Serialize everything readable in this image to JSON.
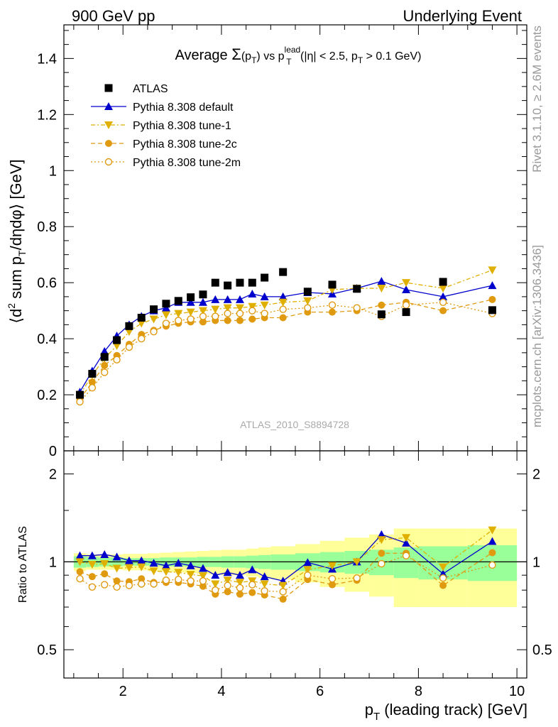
{
  "header": {
    "left": "900 GeV pp",
    "right": "Underlying Event"
  },
  "side_labels": {
    "rivet": "Rivet 3.1.10, ≥ 2.6M events",
    "mcplots": "mcplots.cern.ch [arXiv:1306.3436]"
  },
  "chart_data": [
    {
      "type": "scatter",
      "panel": "main",
      "title": {
        "prefix": "Average ",
        "sigma": "Σ",
        "paren_open": "(p",
        "paren_sub": "T",
        "paren_close": ")",
        "vs": " vs p",
        "lead_sup": "lead",
        "lead_sub": "T",
        "cuts_a": " (|η| < 2.5, p",
        "cuts_sub": "T",
        "cuts_b": " > 0.1 GeV)"
      },
      "ylabel": {
        "a": "⟨d",
        "sup": "2",
        "b": " sum p",
        "sub": "T",
        "c": "/dηdφ⟩ [GeV]"
      },
      "watermark": "ATLAS_2010_S8894728",
      "xlim": [
        0.8,
        10.2
      ],
      "ylim": [
        0,
        1.52
      ],
      "ytick_labels": [
        "0",
        "0.2",
        "0.4",
        "0.6",
        "0.8",
        "1",
        "1.2",
        "1.4"
      ],
      "legend_position": "top-left",
      "x": [
        1.125,
        1.375,
        1.625,
        1.875,
        2.125,
        2.375,
        2.625,
        2.875,
        3.125,
        3.375,
        3.625,
        3.875,
        4.125,
        4.375,
        4.625,
        4.875,
        5.25,
        5.75,
        6.25,
        6.75,
        7.25,
        7.75,
        8.5,
        9.5
      ],
      "series": [
        {
          "name": "ATLAS",
          "color": "#000000",
          "marker": "square",
          "values": [
            0.2,
            0.275,
            0.335,
            0.395,
            0.445,
            0.475,
            0.505,
            0.525,
            0.535,
            0.548,
            0.558,
            0.6,
            0.59,
            0.6,
            0.6,
            0.618,
            0.638,
            0.568,
            0.593,
            0.578,
            0.487,
            0.495,
            0.603,
            0.502
          ]
        },
        {
          "name": "Pythia 8.308 default",
          "color": "#0000cc",
          "marker": "triangle-up",
          "line": "solid",
          "values": [
            0.21,
            0.285,
            0.355,
            0.41,
            0.45,
            0.48,
            0.5,
            0.51,
            0.53,
            0.53,
            0.53,
            0.54,
            0.54,
            0.54,
            0.56,
            0.55,
            0.55,
            0.565,
            0.56,
            0.58,
            0.605,
            0.575,
            0.55,
            0.59
          ]
        },
        {
          "name": "Pythia 8.308 tune-1",
          "color": "#e0b000",
          "marker": "triangle-down",
          "line": "dashdot",
          "values": [
            0.2,
            0.27,
            0.33,
            0.375,
            0.425,
            0.455,
            0.47,
            0.485,
            0.49,
            0.495,
            0.5,
            0.505,
            0.51,
            0.51,
            0.515,
            0.52,
            0.53,
            0.535,
            0.575,
            0.58,
            0.58,
            0.6,
            0.58,
            0.645
          ]
        },
        {
          "name": "Pythia 8.308 tune-2c",
          "color": "#e09a10",
          "marker": "circle",
          "line": "dashed",
          "values": [
            0.185,
            0.245,
            0.305,
            0.34,
            0.38,
            0.415,
            0.43,
            0.445,
            0.455,
            0.46,
            0.46,
            0.465,
            0.465,
            0.465,
            0.47,
            0.475,
            0.475,
            0.495,
            0.495,
            0.5,
            0.52,
            0.53,
            0.5,
            0.54
          ]
        },
        {
          "name": "Pythia 8.308 tune-2m",
          "color": "#e09a10",
          "marker": "circle-open",
          "line": "dotted",
          "values": [
            0.175,
            0.225,
            0.28,
            0.325,
            0.37,
            0.4,
            0.425,
            0.455,
            0.465,
            0.47,
            0.48,
            0.48,
            0.49,
            0.49,
            0.5,
            0.49,
            0.505,
            0.51,
            0.52,
            0.51,
            0.48,
            0.52,
            0.53,
            0.49
          ]
        }
      ]
    },
    {
      "type": "line",
      "panel": "ratio",
      "ylabel": "Ratio to ATLAS",
      "xlabel": {
        "a": "p",
        "sub": "T",
        "b": " (leading track) [GeV]"
      },
      "xlim": [
        0.8,
        10.2
      ],
      "ylim": [
        0.4,
        2.4
      ],
      "log_y": true,
      "ytick_labels": [
        "0.5",
        "1",
        "2"
      ],
      "xtick_labels": [
        "2",
        "4",
        "6",
        "8",
        "10"
      ],
      "bin_edges": [
        1.0,
        1.25,
        1.5,
        1.75,
        2.0,
        2.25,
        2.5,
        2.75,
        3.0,
        3.25,
        3.5,
        3.75,
        4.0,
        4.25,
        4.5,
        4.75,
        5.0,
        5.5,
        6.0,
        6.5,
        7.0,
        7.5,
        8.0,
        9.0,
        10.0
      ],
      "band_inner_halfwidth": [
        0.045,
        0.04,
        0.035,
        0.035,
        0.03,
        0.03,
        0.03,
        0.035,
        0.035,
        0.035,
        0.04,
        0.04,
        0.045,
        0.045,
        0.05,
        0.055,
        0.06,
        0.07,
        0.08,
        0.09,
        0.1,
        0.12,
        0.13,
        0.14
      ],
      "band_outer_halfwidth": [
        0.07,
        0.06,
        0.06,
        0.06,
        0.065,
        0.065,
        0.07,
        0.075,
        0.08,
        0.085,
        0.09,
        0.095,
        0.1,
        0.1,
        0.11,
        0.12,
        0.13,
        0.15,
        0.18,
        0.21,
        0.24,
        0.3,
        0.3,
        0.3
      ],
      "band_colors": {
        "outer": "#ffff99",
        "inner": "#99ff99"
      },
      "series": [
        {
          "name": "Pythia 8.308 default",
          "values": [
            1.05,
            1.05,
            1.06,
            1.04,
            1.01,
            1.01,
            0.99,
            0.97,
            0.99,
            0.97,
            0.95,
            0.9,
            0.92,
            0.9,
            0.94,
            0.89,
            0.86,
            0.995,
            0.945,
            1.0,
            1.24,
            1.16,
            0.91,
            1.175
          ]
        },
        {
          "name": "Pythia 8.308 tune-1",
          "values": [
            1.0,
            0.98,
            0.985,
            0.95,
            0.955,
            0.96,
            0.93,
            0.925,
            0.92,
            0.905,
            0.895,
            0.84,
            0.865,
            0.85,
            0.86,
            0.84,
            0.83,
            0.94,
            0.97,
            1.0,
            1.19,
            1.21,
            0.96,
            1.285
          ]
        },
        {
          "name": "Pythia 8.308 tune-2c",
          "values": [
            0.925,
            0.89,
            0.91,
            0.86,
            0.855,
            0.875,
            0.85,
            0.85,
            0.85,
            0.84,
            0.825,
            0.775,
            0.79,
            0.775,
            0.785,
            0.77,
            0.745,
            0.87,
            0.835,
            0.865,
            1.07,
            1.07,
            0.83,
            1.075
          ]
        },
        {
          "name": "Pythia 8.308 tune-2m",
          "values": [
            0.875,
            0.82,
            0.835,
            0.82,
            0.83,
            0.84,
            0.84,
            0.865,
            0.87,
            0.86,
            0.86,
            0.8,
            0.83,
            0.815,
            0.835,
            0.795,
            0.79,
            0.9,
            0.875,
            0.88,
            0.985,
            1.05,
            0.88,
            0.975
          ]
        }
      ]
    }
  ]
}
